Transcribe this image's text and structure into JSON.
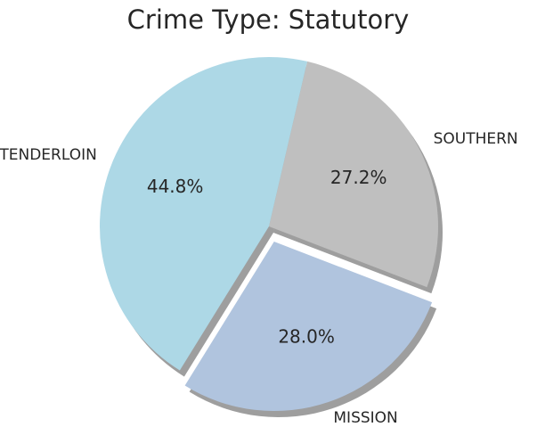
{
  "chart_data": {
    "type": "pie",
    "title": "Crime Type: Statutory",
    "slices": [
      {
        "label": "SOUTHERN",
        "value": 27.2,
        "pct_label": "27.2%",
        "color": "#bfbfbf",
        "explode": false
      },
      {
        "label": "TENDERLOIN",
        "value": 44.8,
        "pct_label": "44.8%",
        "color": "#add8e6",
        "explode": false
      },
      {
        "label": "MISSION",
        "value": 28.0,
        "pct_label": "28.0%",
        "color": "#b0c4de",
        "explode": true
      }
    ],
    "start_angle_deg": -21,
    "direction": "counterclockwise",
    "shadow": true,
    "legend": "none"
  }
}
